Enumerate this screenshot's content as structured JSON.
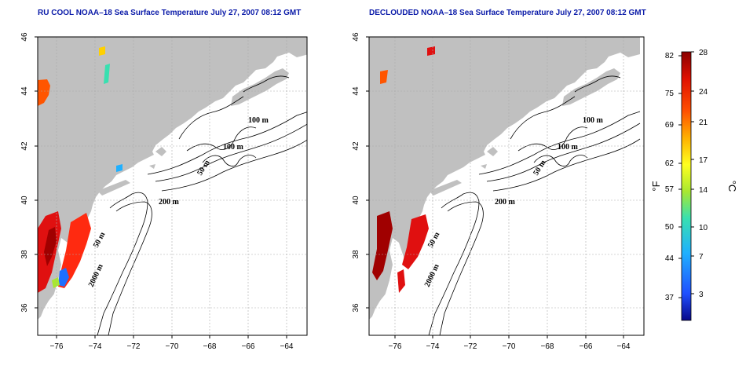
{
  "maps": [
    {
      "id": "left",
      "title": "RU COOL NOAA–18 Sea Surface Temperature July 27, 2007 08:12 GMT"
    },
    {
      "id": "right",
      "title": "DECLOUDED NOAA–18 Sea Surface Temperature July 27, 2007 08:12 GMT"
    }
  ],
  "axes": {
    "lon_ticks": [
      "−76",
      "−74",
      "−72",
      "−70",
      "−68",
      "−66",
      "−64"
    ],
    "lat_ticks": [
      "36",
      "38",
      "40",
      "42",
      "44",
      "46"
    ],
    "lon_range": [
      -77,
      -63
    ],
    "lat_range": [
      35,
      46
    ]
  },
  "contour_labels": {
    "c100a": "100 m",
    "c100b": "100 m",
    "c50a": "50 m",
    "c200": "200 m",
    "c50b": "50 m",
    "c2000": "2000 m"
  },
  "colorbar": {
    "fahrenheit_unit": "°F",
    "celsius_unit": "°C",
    "fahrenheit_ticks": [
      "82",
      "75",
      "69",
      "62",
      "57",
      "50",
      "44",
      "37"
    ],
    "celsius_ticks": [
      "28",
      "24",
      "21",
      "17",
      "14",
      "10",
      "7",
      "3"
    ],
    "colors": [
      "#08088a",
      "#1f4fff",
      "#1fb0ff",
      "#38e0b0",
      "#a8e830",
      "#ffff20",
      "#ffb000",
      "#ff5000",
      "#e01000",
      "#8a0000"
    ]
  },
  "colors": {
    "land": "#c0c0c0",
    "title": "#0a1aa8",
    "sst_warm": "#e02010",
    "sst_hot": "#a00000"
  }
}
